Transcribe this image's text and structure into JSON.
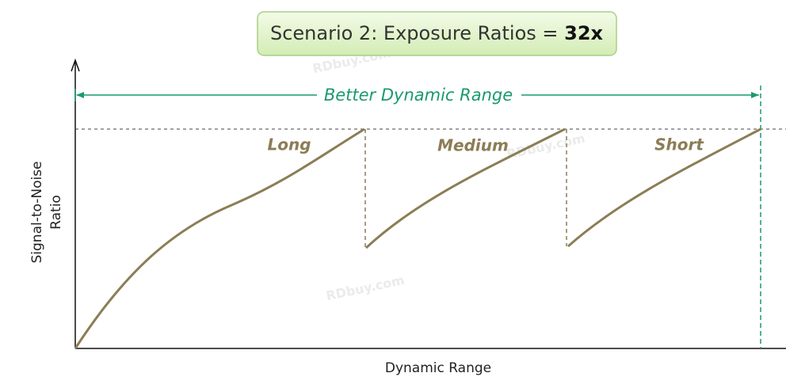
{
  "header": {
    "title": "Scenario 2:  Exposure Ratios = ",
    "title_emphasis": "32x"
  },
  "range_label": "Better Dynamic Range",
  "curves": [
    {
      "label": "Long"
    },
    {
      "label": "Medium"
    },
    {
      "label": "Short"
    }
  ],
  "y_axis_label": [
    "Signal-to-Noise",
    "Ratio"
  ],
  "x_axis_label": "Dynamic Range",
  "watermark": "RDbuy.com"
}
